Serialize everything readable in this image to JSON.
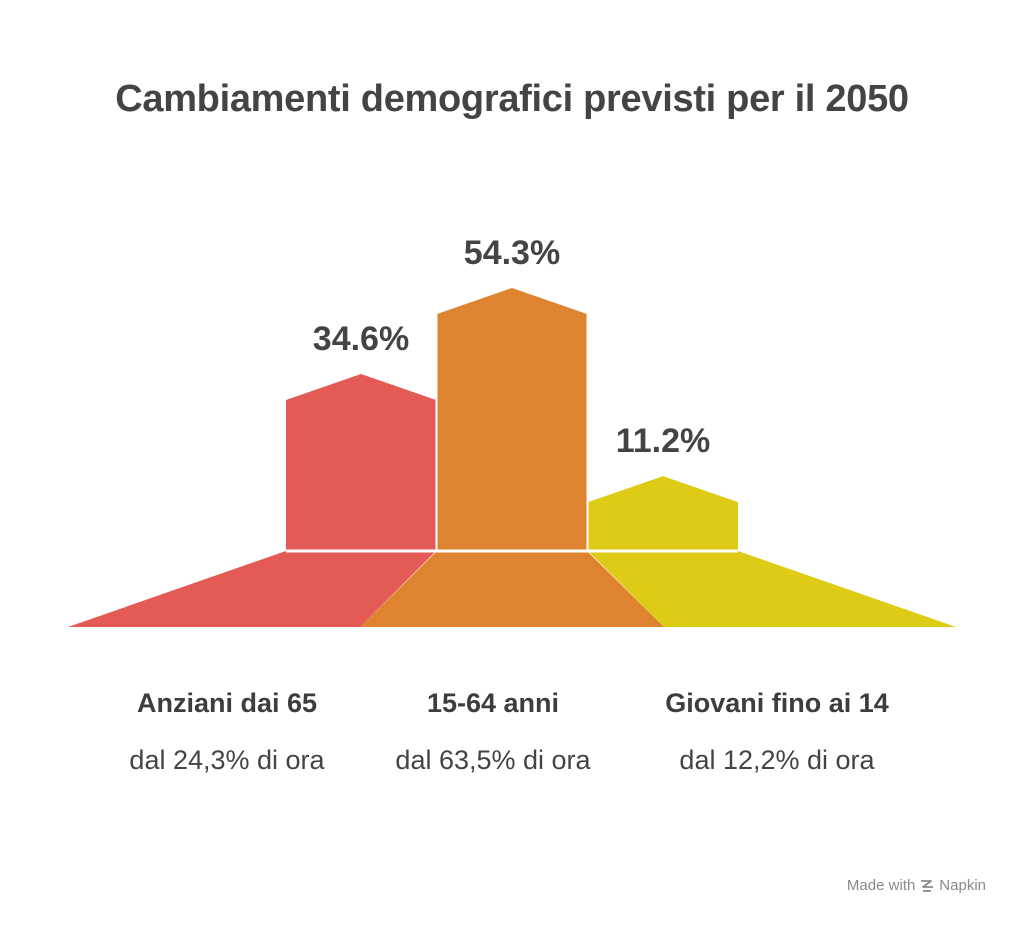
{
  "chart_data": {
    "type": "bar",
    "title": "Cambiamenti demografici previsti per il 2050",
    "categories": [
      "Anziani dai 65",
      "15-64 anni",
      "Giovani fino ai 14"
    ],
    "subtitles": [
      "dal 24,3% di ora",
      "dal 63,5% di ora",
      "dal 12,2% di ora"
    ],
    "values": [
      34.6,
      54.3,
      11.2
    ],
    "value_labels": [
      "34.6%",
      "54.3%",
      "11.2%"
    ],
    "colors": [
      "#E45A54",
      "#DE8430",
      "#DDCB16"
    ],
    "ylim": [
      0,
      100
    ],
    "grid": false,
    "legend": "none"
  },
  "footer": {
    "made_with": "Made with",
    "brand": "Napkin",
    "brand_icon": "napkin-logo-icon"
  }
}
